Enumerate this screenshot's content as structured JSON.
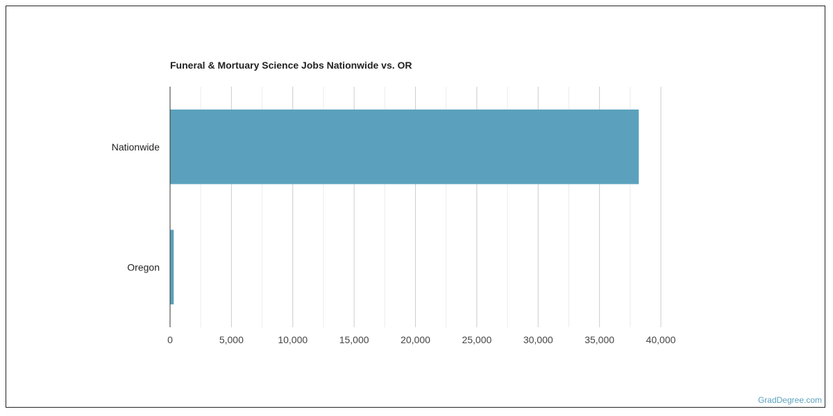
{
  "chart_data": {
    "type": "bar",
    "orientation": "horizontal",
    "title": "Funeral & Mortuary Science Jobs Nationwide vs. OR",
    "categories": [
      "Nationwide",
      "Oregon"
    ],
    "values": [
      38200,
      300
    ],
    "xlim": [
      0,
      40000
    ],
    "x_ticks": [
      0,
      5000,
      10000,
      15000,
      20000,
      25000,
      30000,
      35000,
      40000
    ],
    "x_tick_labels": [
      "0",
      "5,000",
      "10,000",
      "15,000",
      "20,000",
      "25,000",
      "30,000",
      "35,000",
      "40,000"
    ],
    "grid": "vertical",
    "bar_color": "#5ba1bd"
  },
  "watermark": "GradDegree.com"
}
